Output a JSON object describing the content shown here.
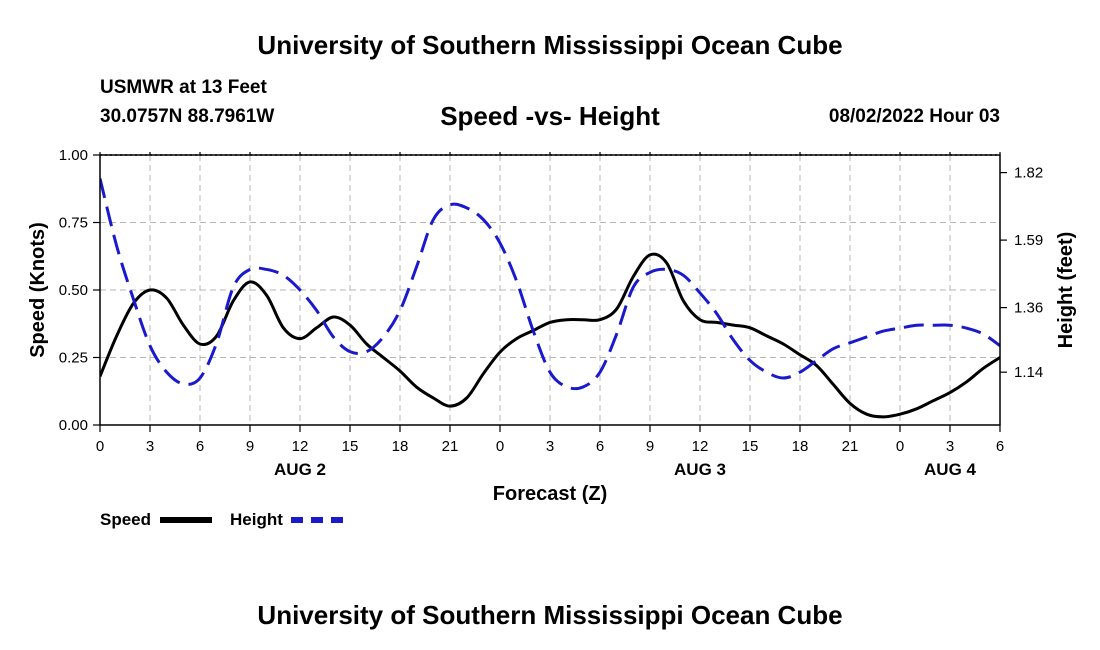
{
  "header": {
    "title_top": "University of Southern Mississippi Ocean Cube",
    "title_bottom": "University of Southern Mississippi Ocean Cube",
    "station": "USMWR at 13 Feet",
    "coords": "30.0757N  88.7961W",
    "datetime": "08/02/2022 Hour 03"
  },
  "chart_data": {
    "type": "line",
    "title": "Speed -vs- Height",
    "xlabel": "Forecast (Z)",
    "ylabel": "Speed (Knots)",
    "y2label": "Height (feet)",
    "x_range": [
      0,
      54
    ],
    "ylim": [
      0,
      1.0
    ],
    "y2lim": [
      0.96,
      1.88
    ],
    "grid": true,
    "x_ticks": [
      {
        "x": 0,
        "label": "0"
      },
      {
        "x": 3,
        "label": "3"
      },
      {
        "x": 6,
        "label": "6"
      },
      {
        "x": 9,
        "label": "9"
      },
      {
        "x": 12,
        "label": "12"
      },
      {
        "x": 15,
        "label": "15"
      },
      {
        "x": 18,
        "label": "18"
      },
      {
        "x": 21,
        "label": "21"
      },
      {
        "x": 24,
        "label": "0"
      },
      {
        "x": 27,
        "label": "3"
      },
      {
        "x": 30,
        "label": "6"
      },
      {
        "x": 33,
        "label": "9"
      },
      {
        "x": 36,
        "label": "12"
      },
      {
        "x": 39,
        "label": "15"
      },
      {
        "x": 42,
        "label": "18"
      },
      {
        "x": 45,
        "label": "21"
      },
      {
        "x": 48,
        "label": "0"
      },
      {
        "x": 51,
        "label": "3"
      },
      {
        "x": 54,
        "label": "6"
      }
    ],
    "date_labels": [
      {
        "x": 12,
        "label": "AUG 2"
      },
      {
        "x": 36,
        "label": "AUG 3"
      },
      {
        "x": 51,
        "label": "AUG 4"
      }
    ],
    "y_ticks": [
      {
        "v": 0.0,
        "label": "0.00"
      },
      {
        "v": 0.25,
        "label": "0.25"
      },
      {
        "v": 0.5,
        "label": "0.50"
      },
      {
        "v": 0.75,
        "label": "0.75"
      },
      {
        "v": 1.0,
        "label": "1.00"
      }
    ],
    "y2_ticks": [
      {
        "v": 1.14,
        "label": "1.14"
      },
      {
        "v": 1.36,
        "label": "1.36"
      },
      {
        "v": 1.59,
        "label": "1.59"
      },
      {
        "v": 1.82,
        "label": "1.82"
      }
    ],
    "series": [
      {
        "name": "Speed",
        "axis": "left",
        "color": "#000000",
        "dash": "solid",
        "x": [
          0,
          1,
          2,
          3,
          4,
          5,
          6,
          7,
          8,
          9,
          10,
          11,
          12,
          13,
          14,
          15,
          16,
          17,
          18,
          19,
          20,
          21,
          22,
          23,
          24,
          25,
          26,
          27,
          28,
          29,
          30,
          31,
          32,
          33,
          34,
          35,
          36,
          37,
          38,
          39,
          40,
          41,
          42,
          43,
          44,
          45,
          46,
          47,
          48,
          49,
          50,
          51,
          52,
          53,
          54
        ],
        "values": [
          0.18,
          0.33,
          0.45,
          0.5,
          0.47,
          0.37,
          0.3,
          0.33,
          0.46,
          0.53,
          0.48,
          0.36,
          0.32,
          0.36,
          0.4,
          0.37,
          0.3,
          0.25,
          0.2,
          0.14,
          0.1,
          0.07,
          0.1,
          0.19,
          0.27,
          0.32,
          0.35,
          0.38,
          0.39,
          0.39,
          0.39,
          0.43,
          0.55,
          0.63,
          0.6,
          0.46,
          0.39,
          0.38,
          0.37,
          0.36,
          0.33,
          0.3,
          0.26,
          0.22,
          0.15,
          0.08,
          0.04,
          0.03,
          0.04,
          0.06,
          0.09,
          0.12,
          0.16,
          0.21,
          0.25
        ]
      },
      {
        "name": "Height",
        "axis": "right",
        "color": "#1a1acc",
        "dash": "dashed",
        "x": [
          0,
          1,
          2,
          3,
          4,
          5,
          6,
          7,
          8,
          9,
          10,
          11,
          12,
          13,
          14,
          15,
          16,
          17,
          18,
          19,
          20,
          21,
          22,
          23,
          24,
          25,
          26,
          27,
          28,
          29,
          30,
          31,
          32,
          33,
          34,
          35,
          36,
          37,
          38,
          39,
          40,
          41,
          42,
          43,
          44,
          45,
          46,
          47,
          48,
          49,
          50,
          51,
          52,
          53,
          54
        ],
        "values": [
          1.8,
          1.57,
          1.39,
          1.23,
          1.14,
          1.1,
          1.12,
          1.24,
          1.43,
          1.49,
          1.49,
          1.47,
          1.42,
          1.35,
          1.26,
          1.21,
          1.21,
          1.26,
          1.35,
          1.5,
          1.66,
          1.71,
          1.7,
          1.66,
          1.58,
          1.45,
          1.28,
          1.14,
          1.09,
          1.09,
          1.14,
          1.27,
          1.43,
          1.48,
          1.49,
          1.47,
          1.41,
          1.34,
          1.25,
          1.18,
          1.14,
          1.12,
          1.14,
          1.18,
          1.22,
          1.24,
          1.26,
          1.28,
          1.29,
          1.3,
          1.3,
          1.3,
          1.29,
          1.27,
          1.23
        ]
      }
    ],
    "legend": {
      "placement": "bottom-left",
      "entries": [
        {
          "label": "Speed",
          "color": "#000000"
        },
        {
          "label": "Height",
          "color": "#1a1acc"
        }
      ]
    }
  }
}
